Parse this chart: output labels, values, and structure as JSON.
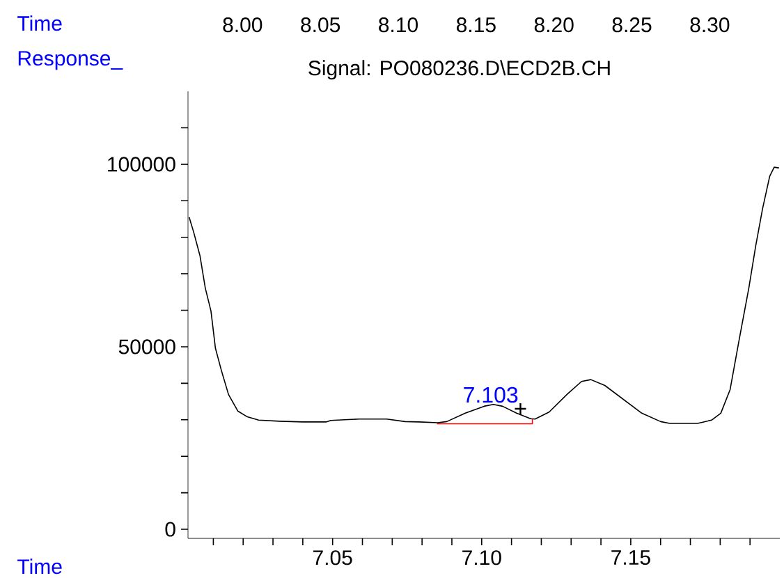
{
  "chart_data": {
    "type": "line",
    "title": "Signal: PO080236.D\\ECD2B.CH",
    "xlabel": "Time",
    "ylabel": "Response_",
    "x2label": "Time",
    "xlim": [
      7.0015,
      7.2
    ],
    "ylim": [
      -2500,
      120000
    ],
    "xticks": [
      {
        "value": 7.01,
        "label": null
      },
      {
        "value": 7.02,
        "label": null
      },
      {
        "value": 7.03,
        "label": null
      },
      {
        "value": 7.04,
        "label": null
      },
      {
        "value": 7.05,
        "label": "7.05"
      },
      {
        "value": 7.06,
        "label": null
      },
      {
        "value": 7.07,
        "label": null
      },
      {
        "value": 7.08,
        "label": null
      },
      {
        "value": 7.09,
        "label": null
      },
      {
        "value": 7.1,
        "label": "7.10"
      },
      {
        "value": 7.11,
        "label": null
      },
      {
        "value": 7.12,
        "label": null
      },
      {
        "value": 7.13,
        "label": null
      },
      {
        "value": 7.14,
        "label": null
      },
      {
        "value": 7.15,
        "label": "7.15"
      },
      {
        "value": 7.16,
        "label": null
      },
      {
        "value": 7.17,
        "label": null
      },
      {
        "value": 7.18,
        "label": null
      },
      {
        "value": 7.19,
        "label": null
      }
    ],
    "yticks": [
      0,
      {
        "value": 10000,
        "label": null
      },
      {
        "value": 20000,
        "label": null
      },
      {
        "value": 30000,
        "label": null
      },
      {
        "value": 40000,
        "label": null
      },
      50000,
      {
        "value": 60000,
        "label": null
      },
      {
        "value": 70000,
        "label": null
      },
      {
        "value": 80000,
        "label": null
      },
      {
        "value": 90000,
        "label": null
      },
      100000,
      {
        "value": 110000,
        "label": null
      }
    ],
    "x2lim": [
      7.965,
      8.345
    ],
    "x2ticks": [
      {
        "value": 8.0,
        "label": "8.00"
      },
      {
        "value": 8.05,
        "label": "8.05"
      },
      {
        "value": 8.1,
        "label": "8.10"
      },
      {
        "value": 8.15,
        "label": "8.15"
      },
      {
        "value": 8.2,
        "label": "8.20"
      },
      {
        "value": 8.25,
        "label": "8.25"
      },
      {
        "value": 8.3,
        "label": "8.30"
      }
    ],
    "grid": false,
    "line_style": "solid",
    "annotations": [
      {
        "text": "7.103",
        "x": 7.103,
        "y": 34200
      }
    ],
    "series": [
      {
        "color": "#000000",
        "x": [
          7.0019,
          7.0034,
          7.0055,
          7.0073,
          7.0092,
          7.0107,
          7.0128,
          7.0151,
          7.0182,
          7.0214,
          7.0252,
          7.0322,
          7.04,
          7.0478,
          7.0494,
          7.0587,
          7.0681,
          7.0743,
          7.079,
          7.0852,
          7.0883,
          7.0945,
          7.1008,
          7.1039,
          7.107,
          7.1117,
          7.1164,
          7.1179,
          7.1226,
          7.1288,
          7.1335,
          7.1366,
          7.1413,
          7.1475,
          7.1537,
          7.16,
          7.1631,
          7.1724,
          7.1771,
          7.1802,
          7.1833,
          7.1864,
          7.1896,
          7.1919,
          7.1942,
          7.1966,
          7.1981,
          7.1997
        ],
        "values": [
          85500,
          81400,
          75000,
          66100,
          59800,
          49600,
          43200,
          36900,
          32400,
          30800,
          29900,
          29600,
          29400,
          29400,
          29800,
          30200,
          30200,
          29500,
          29400,
          29200,
          29500,
          31800,
          33700,
          34200,
          33700,
          31800,
          30300,
          30200,
          32100,
          37100,
          40500,
          41000,
          39400,
          35600,
          31800,
          29500,
          29000,
          29000,
          29900,
          31800,
          38200,
          52100,
          66100,
          77600,
          87800,
          96700,
          99200,
          99000
        ]
      },
      {
        "color": "#ff0000",
        "x": [
          7.085,
          7.117,
          7.117
        ],
        "values": [
          28900,
          28900,
          30200
        ]
      },
      {
        "type": "scatter",
        "color": "#000000",
        "marker": "cross",
        "x": [
          7.113
        ],
        "values": [
          33000
        ]
      }
    ]
  }
}
